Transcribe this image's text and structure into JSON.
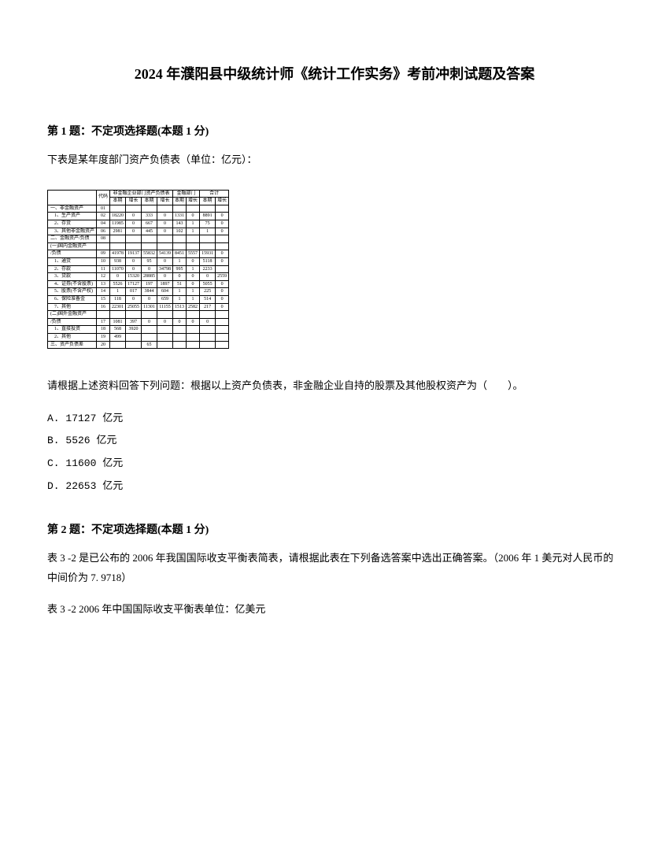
{
  "title": "2024 年濮阳县中级统计师《统计工作实务》考前冲刺试题及答案",
  "q1": {
    "heading": "第 1 题：不定项选择题(本题 1 分)",
    "intro": "下表是某年度部门资产负债表（单位：亿元）：",
    "prompt": "请根据上述资料回答下列问题：根据以上资产负债表，非金融企业自持的股票及其他股权资产为（　　）。",
    "optA": "A. 17127 亿元",
    "optB": "B. 5526 亿元",
    "optC": "C. 11600 亿元",
    "optD": "D. 22653 亿元"
  },
  "table": {
    "hdr_group1": "非金融企业部门资产负债表",
    "hdr_group2": "金融部门",
    "hdr_group3": "合计",
    "col1": "代码",
    "col2": "本期",
    "col3": "增长",
    "col4": "本期",
    "col5": "增长",
    "col6": "本期",
    "col7": "增长",
    "col8": "本期",
    "col9": "增长",
    "r1_label": "一、非金融资产",
    "r1_c1": "01",
    "r2_label": "1、生产资产",
    "r2_c1": "02",
    "r2_v1": "18220",
    "r2_v2": "0",
    "r2_v3": "333",
    "r2_v4": "0",
    "r2_v5": "1331",
    "r2_v6": "0",
    "r2_v7": "8891",
    "r2_v8": "0",
    "r3_label": "2、存货",
    "r3_c1": "04",
    "r3_v1": "11985",
    "r3_v2": "0",
    "r3_v3": "667",
    "r3_v4": "0",
    "r3_v5": "143",
    "r3_v6": "1",
    "r3_v7": "75",
    "r3_v8": "0",
    "r4_label": "3、其他非金融资产",
    "r4_c1": "06",
    "r4_v1": "2981",
    "r4_v2": "0",
    "r4_v3": "445",
    "r4_v4": "0",
    "r4_v5": "102",
    "r4_v6": "1",
    "r4_v7": "1",
    "r4_v8": "0",
    "r5_label": "二、金融资产/负债",
    "r5_c1": "08",
    "r6_label": "(一)国内金融资产",
    "r6_c1": "09",
    "r7_label": "/负债",
    "r7_c1": "09",
    "r7_v1": "41978",
    "r7_v2": "19137",
    "r7_v3": "55832",
    "r7_v4": "54139",
    "r7_v5": "8451",
    "r7_v6": "5557",
    "r7_v7": "15931",
    "r7_v8": "0",
    "r8_label": "1、通货",
    "r8_c1": "10",
    "r8_v1": "938",
    "r8_v2": "0",
    "r8_v3": "95",
    "r8_v4": "0",
    "r8_v5": "1",
    "r8_v6": "0",
    "r8_v7": "5118",
    "r8_v8": "0",
    "r9_label": "2、存款",
    "r9_c1": "11",
    "r9_v1": "11070",
    "r9_v2": "0",
    "r9_v3": "0",
    "r9_v4": "34798",
    "r9_v5": "995",
    "r9_v6": "1",
    "r9_v7": "2233",
    "r9_v8": "",
    "r10_label": "3、贷款",
    "r10_c1": "12",
    "r10_v1": "0",
    "r10_v2": "15320",
    "r10_v3": "28885",
    "r10_v4": "0",
    "r10_v5": "0",
    "r10_v6": "0",
    "r10_v7": "0",
    "r10_v8": "2559",
    "r11_label": "4、证券(不含股票)",
    "r11_c1": "13",
    "r11_v1": "5526",
    "r11_v2": "17127",
    "r11_v3": "197",
    "r11_v4": "1897",
    "r11_v5": "51",
    "r11_v6": "0",
    "r11_v7": "5055",
    "r11_v8": "0",
    "r12_label": "5、股票(不含产权)",
    "r12_c1": "14",
    "r12_v1": "1",
    "r12_v2": "017",
    "r12_v3": "3844",
    "r12_v4": "604",
    "r12_v5": "1",
    "r12_v6": "1",
    "r12_v7": "225",
    "r12_v8": "0",
    "r13_label": "6、保险准备金",
    "r13_c1": "15",
    "r13_v1": "118",
    "r13_v2": "0",
    "r13_v3": "0",
    "r13_v4": "659",
    "r13_v5": "1",
    "r13_v6": "1",
    "r13_v7": "514",
    "r13_v8": "0",
    "r14_label": "7、其他",
    "r14_c1": "16",
    "r14_v1": "22301",
    "r14_v2": "25055",
    "r14_v3": "11301",
    "r14_v4": "11155",
    "r14_v5": "1513",
    "r14_v6": "2582",
    "r14_v7": "217",
    "r14_v8": "0",
    "r15_label": "(二)国外金融资产",
    "r16_label": "/负债",
    "r16_c1": "17",
    "r16_v1": "1081",
    "r16_v2": "397",
    "r16_v3": "0",
    "r16_v4": "0",
    "r16_v5": "0",
    "r16_v6": "0",
    "r16_v7": "0",
    "r16_v8": "",
    "r17_label": "1、直接投资",
    "r17_c1": "18",
    "r17_v1": "568",
    "r17_v2": "3920",
    "r18_label": "2、其他",
    "r18_c1": "19",
    "r18_v1": "499",
    "r19_label": "三、资产负债差",
    "r19_c1": "20",
    "r19_v3": "65"
  },
  "q2": {
    "heading": "第 2 题：不定项选择题(本题 1 分)",
    "text1": "表 3 -2 是已公布的 2006 年我国国际收支平衡表简表，请根据此表在下列备选答案中选出正确答案。（2006 年 1 美元对人民币的中间价为 7. 9718）",
    "text2": "表 3 -2 2006 年中国国际收支平衡表单位：亿美元"
  }
}
